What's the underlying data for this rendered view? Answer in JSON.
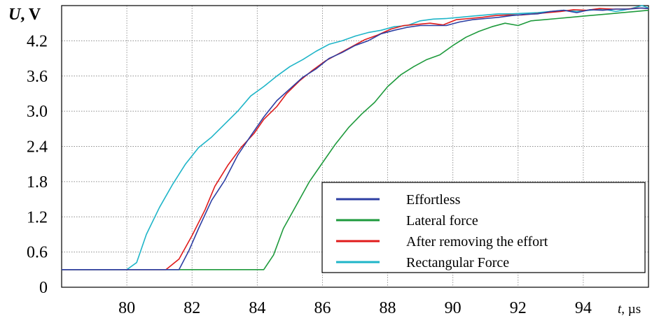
{
  "chart_data": {
    "type": "line",
    "ylabel_var": "U",
    "ylabel_unit": ", V",
    "xlabel_var": "t",
    "xlabel_unit": ", µs",
    "xlim": [
      78,
      96
    ],
    "ylim": [
      0,
      4.8
    ],
    "xticks": [
      80,
      82,
      84,
      86,
      88,
      90,
      92,
      94
    ],
    "yticks": [
      0,
      0.6,
      1.2,
      1.8,
      2.4,
      3.0,
      3.6,
      4.2
    ],
    "ytick_labels": [
      "0",
      "0.6",
      "1.2",
      "1.8",
      "2.4",
      "3.0",
      "3.6",
      "4.2"
    ],
    "grid": true,
    "legend_position": "lower-right",
    "series": [
      {
        "name": "Effortless",
        "color": "#2e3fa3",
        "points": [
          [
            78,
            0.3
          ],
          [
            81.6,
            0.3
          ],
          [
            81.9,
            0.62
          ],
          [
            82.2,
            1.0
          ],
          [
            82.6,
            1.48
          ],
          [
            83.0,
            1.82
          ],
          [
            83.4,
            2.25
          ],
          [
            83.8,
            2.58
          ],
          [
            84.2,
            2.9
          ],
          [
            84.6,
            3.18
          ],
          [
            85.0,
            3.38
          ],
          [
            85.4,
            3.58
          ],
          [
            85.8,
            3.72
          ],
          [
            86.2,
            3.9
          ],
          [
            86.6,
            4.0
          ],
          [
            87.0,
            4.12
          ],
          [
            87.4,
            4.2
          ],
          [
            87.8,
            4.32
          ],
          [
            88.2,
            4.38
          ],
          [
            88.6,
            4.43
          ],
          [
            89.0,
            4.46
          ],
          [
            89.4,
            4.46
          ],
          [
            89.8,
            4.46
          ],
          [
            90.2,
            4.52
          ],
          [
            90.6,
            4.56
          ],
          [
            91.0,
            4.58
          ],
          [
            91.4,
            4.6
          ],
          [
            91.8,
            4.63
          ],
          [
            92.2,
            4.65
          ],
          [
            92.6,
            4.66
          ],
          [
            93.0,
            4.7
          ],
          [
            93.4,
            4.72
          ],
          [
            93.8,
            4.68
          ],
          [
            94.2,
            4.73
          ],
          [
            94.6,
            4.72
          ],
          [
            95.0,
            4.74
          ],
          [
            95.4,
            4.74
          ],
          [
            95.8,
            4.76
          ],
          [
            96,
            4.75
          ]
        ]
      },
      {
        "name": "Lateral force",
        "color": "#1e9a3c",
        "points": [
          [
            78,
            0.3
          ],
          [
            84.2,
            0.3
          ],
          [
            84.5,
            0.55
          ],
          [
            84.8,
            1.0
          ],
          [
            85.2,
            1.4
          ],
          [
            85.6,
            1.8
          ],
          [
            86.0,
            2.12
          ],
          [
            86.4,
            2.44
          ],
          [
            86.8,
            2.72
          ],
          [
            87.2,
            2.95
          ],
          [
            87.6,
            3.15
          ],
          [
            88.0,
            3.42
          ],
          [
            88.4,
            3.62
          ],
          [
            88.8,
            3.76
          ],
          [
            89.2,
            3.88
          ],
          [
            89.6,
            3.96
          ],
          [
            90.0,
            4.12
          ],
          [
            90.4,
            4.26
          ],
          [
            90.8,
            4.36
          ],
          [
            91.2,
            4.44
          ],
          [
            91.6,
            4.5
          ],
          [
            92.0,
            4.46
          ],
          [
            92.4,
            4.54
          ],
          [
            92.8,
            4.56
          ],
          [
            93.2,
            4.58
          ],
          [
            93.6,
            4.6
          ],
          [
            94.0,
            4.62
          ],
          [
            94.4,
            4.64
          ],
          [
            94.8,
            4.66
          ],
          [
            95.2,
            4.68
          ],
          [
            95.6,
            4.7
          ],
          [
            96,
            4.72
          ]
        ]
      },
      {
        "name": "After removing the effort",
        "color": "#e01b1b",
        "points": [
          [
            78,
            0.3
          ],
          [
            81.2,
            0.3
          ],
          [
            81.6,
            0.48
          ],
          [
            82.0,
            0.88
          ],
          [
            82.4,
            1.32
          ],
          [
            82.7,
            1.72
          ],
          [
            83.1,
            2.08
          ],
          [
            83.5,
            2.38
          ],
          [
            83.9,
            2.62
          ],
          [
            84.2,
            2.86
          ],
          [
            84.6,
            3.08
          ],
          [
            84.9,
            3.3
          ],
          [
            85.3,
            3.52
          ],
          [
            85.7,
            3.7
          ],
          [
            86.1,
            3.86
          ],
          [
            86.5,
            3.98
          ],
          [
            86.9,
            4.1
          ],
          [
            87.3,
            4.22
          ],
          [
            87.7,
            4.3
          ],
          [
            88.1,
            4.4
          ],
          [
            88.5,
            4.46
          ],
          [
            88.9,
            4.48
          ],
          [
            89.3,
            4.5
          ],
          [
            89.7,
            4.47
          ],
          [
            90.1,
            4.56
          ],
          [
            90.5,
            4.58
          ],
          [
            90.9,
            4.6
          ],
          [
            91.3,
            4.63
          ],
          [
            91.7,
            4.64
          ],
          [
            92.1,
            4.64
          ],
          [
            92.5,
            4.66
          ],
          [
            92.9,
            4.68
          ],
          [
            93.3,
            4.7
          ],
          [
            93.7,
            4.73
          ],
          [
            94.1,
            4.72
          ],
          [
            94.5,
            4.75
          ],
          [
            94.9,
            4.74
          ],
          [
            95.3,
            4.74
          ],
          [
            95.7,
            4.76
          ],
          [
            96,
            4.75
          ]
        ]
      },
      {
        "name": "Rectangular Force",
        "color": "#1fb5c8",
        "points": [
          [
            78,
            0.3
          ],
          [
            80.0,
            0.3
          ],
          [
            80.3,
            0.42
          ],
          [
            80.6,
            0.9
          ],
          [
            81.0,
            1.36
          ],
          [
            81.4,
            1.75
          ],
          [
            81.8,
            2.1
          ],
          [
            82.2,
            2.38
          ],
          [
            82.6,
            2.56
          ],
          [
            83.0,
            2.78
          ],
          [
            83.4,
            3.0
          ],
          [
            83.8,
            3.26
          ],
          [
            84.2,
            3.42
          ],
          [
            84.6,
            3.6
          ],
          [
            85.0,
            3.76
          ],
          [
            85.4,
            3.88
          ],
          [
            85.8,
            4.02
          ],
          [
            86.2,
            4.14
          ],
          [
            86.6,
            4.2
          ],
          [
            87.0,
            4.28
          ],
          [
            87.4,
            4.34
          ],
          [
            87.8,
            4.38
          ],
          [
            88.2,
            4.44
          ],
          [
            88.6,
            4.46
          ],
          [
            89.0,
            4.54
          ],
          [
            89.4,
            4.57
          ],
          [
            89.8,
            4.58
          ],
          [
            90.2,
            4.6
          ],
          [
            90.6,
            4.62
          ],
          [
            91.0,
            4.64
          ],
          [
            91.4,
            4.66
          ],
          [
            91.8,
            4.66
          ],
          [
            92.2,
            4.67
          ],
          [
            92.6,
            4.68
          ],
          [
            93.0,
            4.7
          ],
          [
            93.4,
            4.72
          ],
          [
            93.8,
            4.7
          ],
          [
            94.2,
            4.72
          ],
          [
            94.6,
            4.74
          ],
          [
            95.0,
            4.7
          ],
          [
            95.4,
            4.74
          ],
          [
            95.8,
            4.8
          ],
          [
            96,
            4.76
          ]
        ]
      }
    ]
  }
}
